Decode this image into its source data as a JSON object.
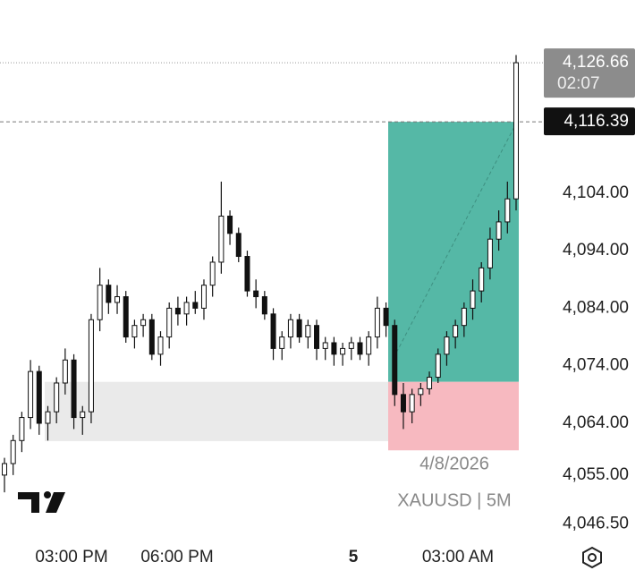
{
  "chart_data": {
    "type": "candlestick",
    "symbol": "XAUUSD | 5M",
    "date_label": "4/8/2026",
    "xtick_labels": [
      "03:00 PM",
      "06:00 PM",
      "5",
      "03:00 AM"
    ],
    "open": [
      4055,
      4057,
      4061,
      4065,
      4073,
      4064,
      4066,
      4071,
      4075,
      4065,
      4066,
      4082,
      4088,
      4085,
      4086,
      4079,
      4081,
      4082,
      4076,
      4079,
      4084,
      4083,
      4085,
      4084,
      4088,
      4092,
      4100,
      4097,
      4093,
      4087,
      4086,
      4083,
      4077,
      4079,
      4082,
      4079,
      4081,
      4077,
      4078,
      4076,
      4077,
      4078,
      4076,
      4079,
      4084,
      4081,
      4069,
      4066,
      4069,
      4070,
      4072,
      4076,
      4079,
      4081,
      4084,
      4087,
      4091,
      4096,
      4099,
      4103
    ],
    "high": [
      4058,
      4062,
      4066,
      4075,
      4074,
      4067,
      4072,
      4077,
      4076,
      4067,
      4083,
      4091,
      4089,
      4088,
      4087,
      4082,
      4083,
      4083,
      4080,
      4085,
      4086,
      4086,
      4087,
      4089,
      4093,
      4106,
      4101,
      4098,
      4094,
      4089,
      4087,
      4084,
      4080,
      4083,
      4083,
      4082,
      4082,
      4079,
      4079,
      4078,
      4079,
      4079,
      4080,
      4086,
      4085,
      4082,
      4071,
      4070,
      4071,
      4073,
      4077,
      4080,
      4082,
      4085,
      4089,
      4092,
      4098,
      4101,
      4106,
      4128
    ],
    "low": [
      4052,
      4055,
      4059,
      4063,
      4062,
      4061,
      4064,
      4069,
      4063,
      4062,
      4064,
      4080,
      4083,
      4083,
      4078,
      4077,
      4079,
      4075,
      4074,
      4077,
      4081,
      4081,
      4083,
      4082,
      4086,
      4090,
      4095,
      4092,
      4086,
      4084,
      4082,
      4075,
      4075,
      4077,
      4078,
      4077,
      4075,
      4075,
      4074,
      4074,
      4075,
      4075,
      4074,
      4077,
      4079,
      4067,
      4063,
      4064,
      4067,
      4069,
      4071,
      4074,
      4077,
      4079,
      4082,
      4085,
      4089,
      4094,
      4097,
      4101
    ],
    "close": [
      4057,
      4061,
      4065,
      4073,
      4064,
      4066,
      4071,
      4075,
      4065,
      4066,
      4082,
      4088,
      4085,
      4086,
      4079,
      4081,
      4082,
      4076,
      4079,
      4084,
      4083,
      4085,
      4084,
      4088,
      4092,
      4100,
      4097,
      4093,
      4087,
      4086,
      4083,
      4077,
      4079,
      4082,
      4079,
      4081,
      4077,
      4078,
      4076,
      4077,
      4078,
      4076,
      4079,
      4084,
      4081,
      4069,
      4066,
      4069,
      4070,
      4072,
      4076,
      4079,
      4081,
      4084,
      4087,
      4091,
      4096,
      4099,
      4103,
      4126.66
    ],
    "ylim": [
      4044.25,
      4137.56
    ],
    "yticks": [
      {
        "value": 4104,
        "label": "4,104.00"
      },
      {
        "value": 4094,
        "label": "4,094.00"
      },
      {
        "value": 4084,
        "label": "4,084.00"
      },
      {
        "value": 4074,
        "label": "4,074.00"
      },
      {
        "value": 4064,
        "label": "4,064.00"
      },
      {
        "value": 4055,
        "label": "4,055.00"
      },
      {
        "value": 4046.5,
        "label": "4,046.50"
      }
    ],
    "last_price": {
      "value": 4126.66,
      "label": "4,126.66"
    },
    "countdown": "02:07",
    "marked_price": {
      "value": 4116.39,
      "label": "4,116.39"
    },
    "position": {
      "target": 4116.39,
      "entry": 4071.2,
      "stop": 4059.3
    },
    "zone": {
      "top": 4071.2,
      "bottom": 4060.9
    },
    "colors": {
      "up": "#ffffff",
      "down": "#111111",
      "profit": "#55b8a6",
      "loss": "#f7b9c0",
      "zone": "#e6e6e6"
    }
  }
}
